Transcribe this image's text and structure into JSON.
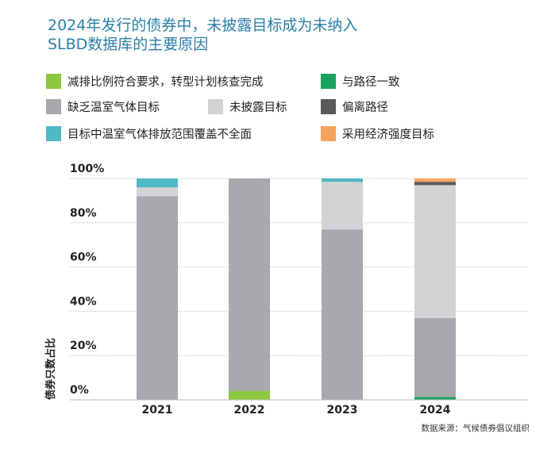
{
  "chart_data": {
    "type": "bar",
    "stacked": true,
    "title": "2024年发行的债券中，未披露目标成为未纳入SLBD数据库的主要原因",
    "title_lines": [
      "2024年发行的债券中，未披露目标成为未纳入",
      "SLBD数据库的主要原因"
    ],
    "ylabel": "债券只数占比",
    "xlabel": "",
    "ylim": [
      0,
      100
    ],
    "y_ticks": [
      "0%",
      "20%",
      "40%",
      "60%",
      "80%",
      "100%"
    ],
    "categories": [
      "2021",
      "2022",
      "2023",
      "2024"
    ],
    "grid": true,
    "legend_position": "top",
    "series": [
      {
        "name": "减排比例符合要求，转型计划核查完成",
        "color": "#8dc63f",
        "values": [
          0,
          4,
          0,
          0
        ]
      },
      {
        "name": "与路径一致",
        "color": "#1aa260",
        "values": [
          0,
          0,
          0,
          1.3
        ]
      },
      {
        "name": "缺乏温室气体目标",
        "color": "#a7a9ac",
        "values": [
          92,
          96,
          77,
          35.7
        ]
      },
      {
        "name": "未披露目标",
        "color": "#d1d3d4",
        "values": [
          4,
          0,
          21.5,
          60
        ]
      },
      {
        "name": "偏离路径",
        "color": "#58595b",
        "values": [
          0,
          0,
          0,
          1.5
        ]
      },
      {
        "name": "目标中温室气体排放范围覆盖不全面",
        "color": "#4fb8c5",
        "values": [
          4,
          0,
          1.5,
          0
        ]
      },
      {
        "name": "采用经济强度目标",
        "color": "#f7a35c",
        "values": [
          0,
          0,
          0,
          1.5
        ]
      }
    ]
  },
  "source": "数据来源：气候债券倡议组织"
}
